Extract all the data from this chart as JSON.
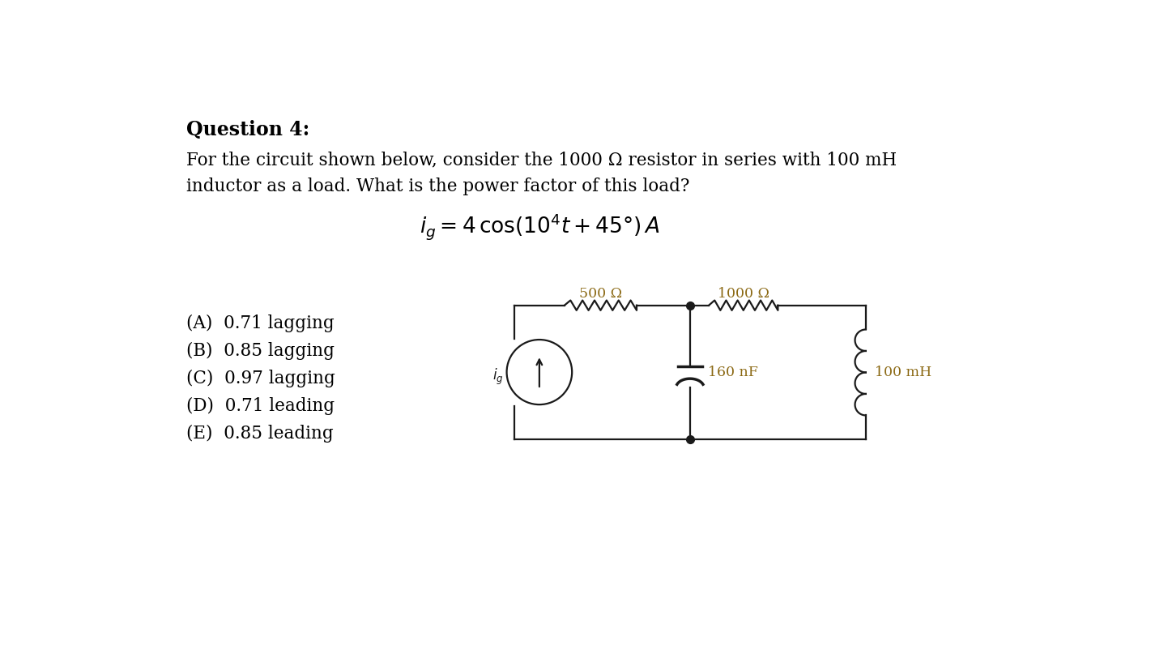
{
  "title": "Question 4:",
  "body_text_line1": "For the circuit shown below, consider the 1000 Ω resistor in series with 100 mH",
  "body_text_line2": "inductor as a load. What is the power factor of this load?",
  "choices": [
    "(A)  0.71 lagging",
    "(B)  0.85 lagging",
    "(C)  0.97 lagging",
    "(D)  0.71 leading",
    "(E)  0.85 leading"
  ],
  "circuit": {
    "R1_label": "500 Ω",
    "R2_label": "1000 Ω",
    "C_label": "160 nF",
    "L_label": "100 mH",
    "wire_color": "#1a1a1a",
    "label_color": "#8B6914"
  },
  "bg_color": "#ffffff",
  "text_color": "#000000",
  "font_size_title": 17,
  "font_size_body": 15.5,
  "font_size_eq": 19,
  "font_size_choices": 15.5,
  "font_size_circuit_label": 12.5
}
